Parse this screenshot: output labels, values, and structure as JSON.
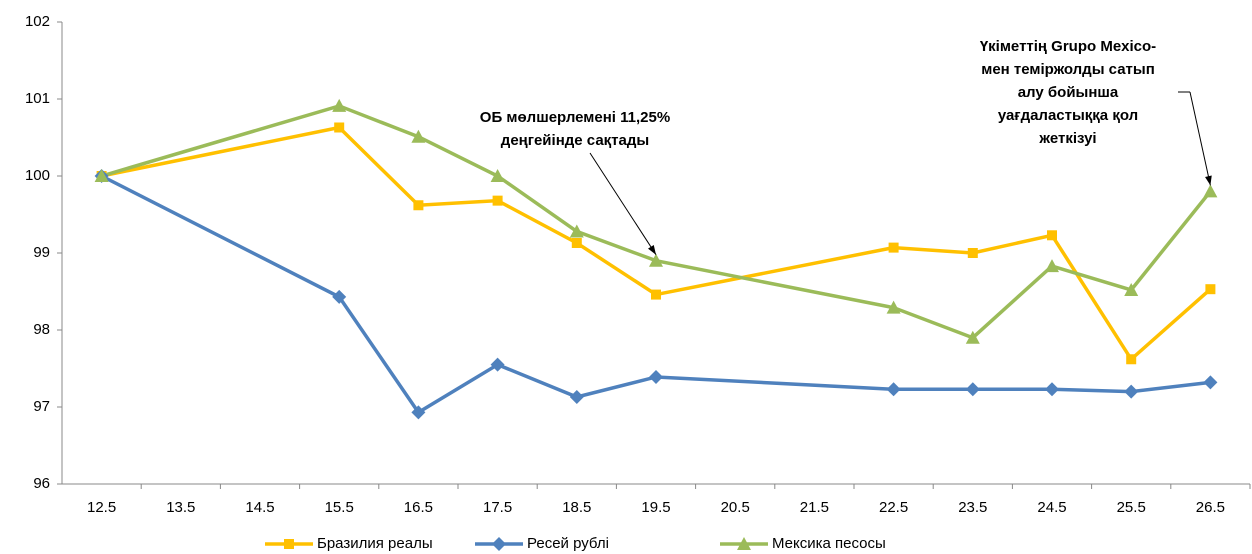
{
  "chart_data": {
    "type": "line",
    "xticks": [
      "12.5",
      "13.5",
      "14.5",
      "15.5",
      "16.5",
      "17.5",
      "18.5",
      "19.5",
      "20.5",
      "21.5",
      "22.5",
      "23.5",
      "24.5",
      "25.5",
      "26.5"
    ],
    "x": [
      "12.5",
      "15.5",
      "16.5",
      "17.5",
      "18.5",
      "19.5",
      "22.5",
      "23.5",
      "24.5",
      "25.5",
      "26.5"
    ],
    "series": [
      {
        "name": "Бразилия реалы",
        "color": "#FFC000",
        "marker": "square",
        "values": [
          100,
          100.63,
          99.62,
          99.68,
          99.13,
          98.46,
          99.07,
          99.0,
          99.23,
          97.62,
          98.53
        ]
      },
      {
        "name": "Ресей рублі",
        "color": "#4F81BD",
        "marker": "diamond",
        "values": [
          100,
          98.43,
          96.93,
          97.55,
          97.13,
          97.39,
          97.23,
          97.23,
          97.23,
          97.2,
          97.32
        ]
      },
      {
        "name": "Мексика песосы",
        "color": "#9BBB59",
        "marker": "triangle",
        "values": [
          100,
          100.91,
          100.51,
          100.0,
          99.28,
          98.9,
          98.29,
          97.9,
          98.83,
          98.52,
          99.8
        ]
      }
    ],
    "ylim": [
      96,
      102
    ],
    "yticks": [
      96,
      97,
      98,
      99,
      100,
      101,
      102
    ],
    "annotations": [
      {
        "lines": [
          "ОБ мөлшерлемені 11,25%",
          "деңгейінде сақтады"
        ],
        "x": "19.5",
        "series": 2
      },
      {
        "lines": [
          "Үкіметтің Grupo Mexico-",
          "мен теміржолды сатып",
          "алу бойынша",
          "уағдаластыққа қол",
          "жеткізуі"
        ],
        "x": "26.5",
        "series": 2
      }
    ],
    "legend": "bottom"
  }
}
